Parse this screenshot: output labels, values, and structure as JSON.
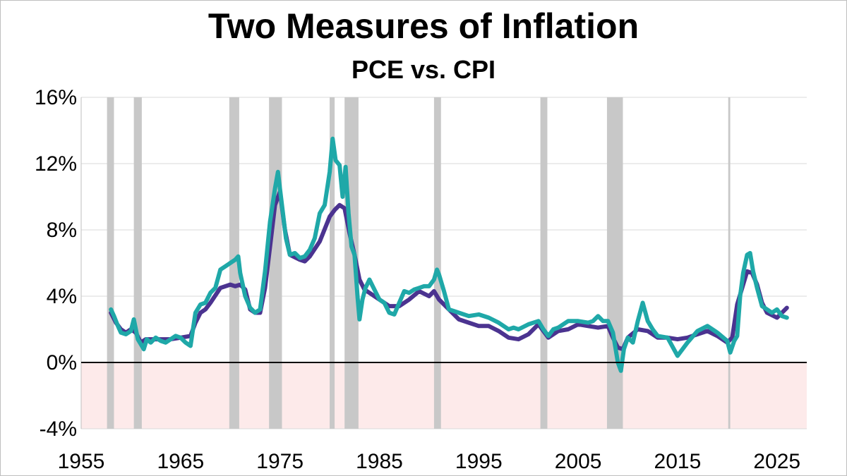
{
  "chart_data": {
    "type": "line",
    "title": "Two Measures of Inflation",
    "subtitle": "PCE vs. CPI",
    "xlabel": "",
    "ylabel": "",
    "xlim": [
      1955,
      2028
    ],
    "ylim": [
      -4,
      16
    ],
    "x_ticks": [
      1955,
      1965,
      1975,
      1985,
      1995,
      2005,
      2015,
      2025
    ],
    "y_ticks": [
      -4,
      0,
      4,
      8,
      12,
      16
    ],
    "y_tick_labels": [
      "-4%",
      "0%",
      "4%",
      "8%",
      "12%",
      "16%"
    ],
    "grid": "horizontal",
    "negative_region_color": "#fdeaea",
    "recession_color": "#c8c8c8",
    "recessions": [
      [
        1957.6,
        1958.3
      ],
      [
        1960.3,
        1961.1
      ],
      [
        1969.9,
        1970.9
      ],
      [
        1973.9,
        1975.2
      ],
      [
        1980.0,
        1980.5
      ],
      [
        1981.5,
        1982.9
      ],
      [
        1990.5,
        1991.2
      ],
      [
        2001.2,
        2001.9
      ],
      [
        2007.9,
        2009.5
      ],
      [
        2020.1,
        2020.3
      ]
    ],
    "series": [
      {
        "color": "#4b3390",
        "x": [
          1958.0,
          1958.5,
          1959.0,
          1959.5,
          1960.0,
          1960.5,
          1961.0,
          1961.5,
          1962.0,
          1963.0,
          1964.0,
          1965.0,
          1966.0,
          1966.5,
          1967.0,
          1967.5,
          1968.0,
          1969.0,
          1970.0,
          1970.5,
          1971.0,
          1971.5,
          1972.0,
          1972.5,
          1973.0,
          1973.5,
          1974.0,
          1974.5,
          1975.0,
          1975.5,
          1976.0,
          1977.0,
          1977.5,
          1978.0,
          1979.0,
          1980.0,
          1980.5,
          1981.0,
          1981.5,
          1982.0,
          1982.5,
          1983.0,
          1983.5,
          1984.0,
          1985.0,
          1986.0,
          1987.0,
          1988.0,
          1989.0,
          1990.0,
          1990.5,
          1991.0,
          1992.0,
          1993.0,
          1994.0,
          1995.0,
          1996.0,
          1997.0,
          1998.0,
          1999.0,
          2000.0,
          2001.0,
          2002.0,
          2003.0,
          2004.0,
          2005.0,
          2006.0,
          2007.0,
          2008.0,
          2008.5,
          2009.0,
          2009.5,
          2010.0,
          2011.0,
          2012.0,
          2013.0,
          2014.0,
          2015.0,
          2016.0,
          2017.0,
          2018.0,
          2019.0,
          2020.0,
          2020.5,
          2021.0,
          2021.5,
          2022.0,
          2022.5,
          2023.0,
          2023.5,
          2024.0,
          2025.0,
          2025.5,
          2026.0
        ],
        "y": [
          3.0,
          2.4,
          2.0,
          1.8,
          2.0,
          1.8,
          1.2,
          1.4,
          1.4,
          1.4,
          1.4,
          1.5,
          1.6,
          2.4,
          3.0,
          3.2,
          3.6,
          4.5,
          4.7,
          4.6,
          4.7,
          4.4,
          3.2,
          3.0,
          3.0,
          4.5,
          7.0,
          9.5,
          10.3,
          8.0,
          6.5,
          6.2,
          6.1,
          6.4,
          7.3,
          8.8,
          9.2,
          9.5,
          9.3,
          7.8,
          6.5,
          5.0,
          4.4,
          4.2,
          3.8,
          3.4,
          3.4,
          3.8,
          4.3,
          4.0,
          4.3,
          3.8,
          3.2,
          2.6,
          2.4,
          2.2,
          2.2,
          1.9,
          1.5,
          1.4,
          1.7,
          2.3,
          1.5,
          1.9,
          2.0,
          2.3,
          2.2,
          2.1,
          2.2,
          1.5,
          0.9,
          0.8,
          1.5,
          2.0,
          1.9,
          1.5,
          1.5,
          1.4,
          1.5,
          1.7,
          1.9,
          1.6,
          1.2,
          1.5,
          3.5,
          4.5,
          5.5,
          5.4,
          4.7,
          3.6,
          3.0,
          2.7,
          3.0,
          3.3
        ]
      },
      {
        "color": "#1fa8a8",
        "x": [
          1958.0,
          1958.3,
          1958.7,
          1959.0,
          1959.5,
          1960.0,
          1960.3,
          1960.7,
          1961.0,
          1961.3,
          1961.6,
          1962.0,
          1962.5,
          1963.0,
          1963.5,
          1964.0,
          1964.5,
          1965.0,
          1965.5,
          1966.0,
          1966.5,
          1967.0,
          1967.5,
          1968.0,
          1968.5,
          1969.0,
          1969.5,
          1970.0,
          1970.5,
          1970.8,
          1971.0,
          1971.5,
          1972.0,
          1972.5,
          1973.0,
          1973.5,
          1974.0,
          1974.5,
          1974.8,
          1975.0,
          1975.3,
          1975.6,
          1976.0,
          1976.5,
          1977.0,
          1977.5,
          1978.0,
          1978.5,
          1979.0,
          1979.5,
          1980.0,
          1980.3,
          1980.6,
          1981.0,
          1981.3,
          1981.6,
          1981.9,
          1982.2,
          1982.5,
          1982.8,
          1983.0,
          1983.3,
          1983.6,
          1984.0,
          1984.5,
          1985.0,
          1985.5,
          1986.0,
          1986.5,
          1987.0,
          1987.5,
          1988.0,
          1988.5,
          1989.0,
          1989.5,
          1990.0,
          1990.5,
          1990.8,
          1991.0,
          1991.5,
          1992.0,
          1992.5,
          1993.0,
          1994.0,
          1995.0,
          1996.0,
          1997.0,
          1998.0,
          1998.5,
          1999.0,
          2000.0,
          2001.0,
          2001.5,
          2002.0,
          2002.5,
          2003.0,
          2004.0,
          2005.0,
          2006.0,
          2006.5,
          2007.0,
          2007.5,
          2008.0,
          2008.5,
          2009.0,
          2009.3,
          2009.6,
          2010.0,
          2010.5,
          2011.0,
          2011.5,
          2012.0,
          2012.5,
          2013.0,
          2014.0,
          2015.0,
          2016.0,
          2017.0,
          2018.0,
          2019.0,
          2020.0,
          2020.3,
          2020.7,
          2021.0,
          2021.3,
          2021.6,
          2022.0,
          2022.3,
          2022.6,
          2023.0,
          2023.5,
          2024.0,
          2024.5,
          2025.0,
          2025.5,
          2026.0
        ],
        "y": [
          3.2,
          2.8,
          2.2,
          1.8,
          1.7,
          1.9,
          2.6,
          1.4,
          1.1,
          0.8,
          1.4,
          1.2,
          1.5,
          1.3,
          1.2,
          1.4,
          1.6,
          1.5,
          1.2,
          1.0,
          3.0,
          3.5,
          3.6,
          4.2,
          4.5,
          5.6,
          5.8,
          6.0,
          6.2,
          6.4,
          5.4,
          4.0,
          3.3,
          3.0,
          3.2,
          5.5,
          8.5,
          10.5,
          11.5,
          10.5,
          9.0,
          7.5,
          6.5,
          6.6,
          6.3,
          6.4,
          6.8,
          7.5,
          9.0,
          9.5,
          11.5,
          13.5,
          12.2,
          11.9,
          10.0,
          11.8,
          9.0,
          7.0,
          6.5,
          4.0,
          2.6,
          3.8,
          4.5,
          5.0,
          4.4,
          3.8,
          3.6,
          3.0,
          2.9,
          3.6,
          4.3,
          4.2,
          4.4,
          4.5,
          4.6,
          4.6,
          5.0,
          5.6,
          5.3,
          4.3,
          3.2,
          3.1,
          3.0,
          2.8,
          2.9,
          2.7,
          2.4,
          2.0,
          2.1,
          2.0,
          2.3,
          2.5,
          2.0,
          1.6,
          2.0,
          2.1,
          2.5,
          2.5,
          2.4,
          2.5,
          2.8,
          2.5,
          2.5,
          1.8,
          0.0,
          -0.5,
          0.8,
          1.5,
          1.2,
          2.5,
          3.6,
          2.5,
          2.0,
          1.6,
          1.5,
          0.4,
          1.2,
          1.9,
          2.2,
          1.8,
          1.3,
          0.6,
          1.3,
          1.6,
          4.0,
          5.4,
          6.5,
          6.6,
          5.5,
          4.5,
          3.4,
          3.2,
          3.0,
          3.2,
          2.8,
          2.7
        ]
      }
    ]
  }
}
